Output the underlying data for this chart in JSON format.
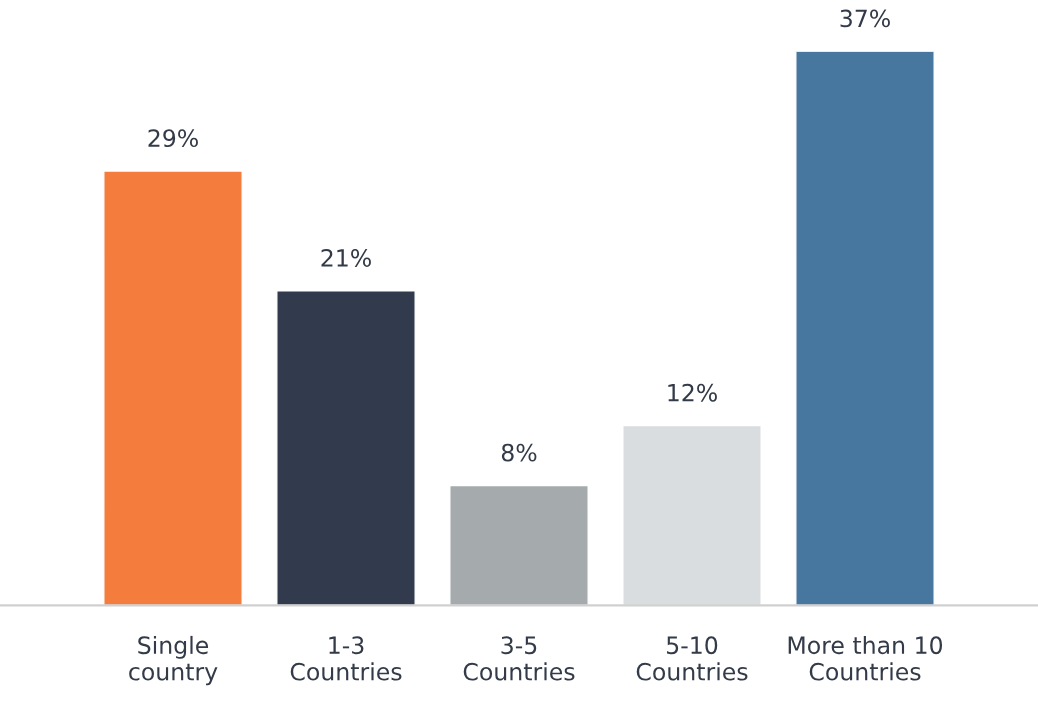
{
  "chart_data": {
    "type": "bar",
    "categories": [
      "Single\ncountry",
      "1-3\nCountries",
      "3-5\nCountries",
      "5-10\nCountries",
      "More than 10\nCountries"
    ],
    "values": [
      29,
      21,
      8,
      12,
      37
    ],
    "colors": [
      "#f47c3c",
      "#323b4e",
      "#a5abad",
      "#d9dde0",
      "#47779f"
    ],
    "value_labels": [
      "29%",
      "21%",
      "8%",
      "12%",
      "37%"
    ],
    "tick_labels": "x",
    "grid": false,
    "legend": false
  }
}
